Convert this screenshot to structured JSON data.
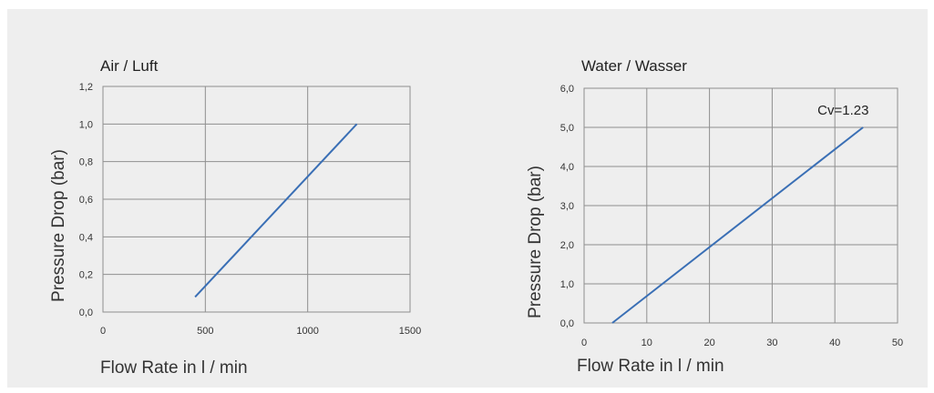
{
  "chart_data": [
    {
      "type": "line",
      "title": "Air / Luft",
      "xlabel": "Flow Rate in l / min",
      "ylabel": "Pressure Drop (bar)",
      "xlim": [
        0,
        1500
      ],
      "ylim": [
        0,
        1.2
      ],
      "x_ticks": [
        0,
        500,
        1000,
        1500
      ],
      "x_tick_labels": [
        "0",
        "500",
        "1000",
        "1500"
      ],
      "y_ticks": [
        0,
        0.2,
        0.4,
        0.6,
        0.8,
        1.0,
        1.2
      ],
      "y_tick_labels": [
        "0,0",
        "0,2",
        "0,4",
        "0,6",
        "0,8",
        "1,0",
        "1,2"
      ],
      "grid": true,
      "series": [
        {
          "color": "#3a6fb5",
          "x": [
            450,
            1240
          ],
          "y": [
            0.08,
            1.0
          ]
        }
      ]
    },
    {
      "type": "line",
      "title": "Water / Wasser",
      "xlabel": "Flow Rate in l / min",
      "ylabel": "Pressure Drop (bar)",
      "xlim": [
        0,
        50
      ],
      "ylim": [
        0,
        6
      ],
      "x_ticks": [
        0,
        10,
        20,
        30,
        40,
        50
      ],
      "x_tick_labels": [
        "0",
        "10",
        "20",
        "30",
        "40",
        "50"
      ],
      "y_ticks": [
        0,
        1,
        2,
        3,
        4,
        5,
        6
      ],
      "y_tick_labels": [
        "0,0",
        "1,0",
        "2,0",
        "3,0",
        "4,0",
        "5,0",
        "6,0"
      ],
      "grid": true,
      "annotation": "Cv=1.23",
      "series": [
        {
          "color": "#3a6fb5",
          "x": [
            4.5,
            44.5
          ],
          "y": [
            0,
            5.0
          ]
        }
      ]
    }
  ]
}
